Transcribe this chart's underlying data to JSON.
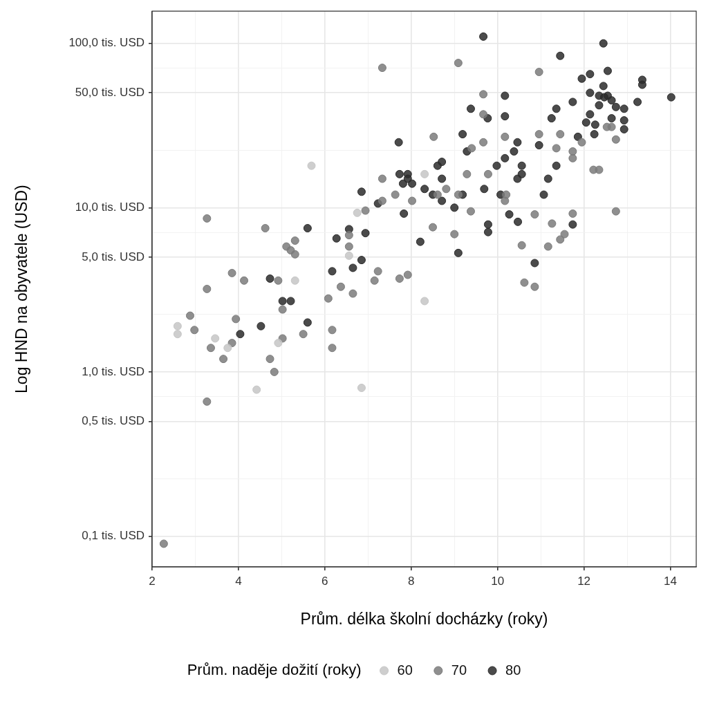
{
  "chart_data": {
    "type": "scatter",
    "xlabel": "Prům. délka školní docházky (roky)",
    "ylabel": "Log HND na obyvatele (USD)",
    "legend_title": "Prům. naděje dožití (roky)",
    "legend": "bottom",
    "marker": "circle",
    "log": "y",
    "grid": true,
    "xlim": [
      2,
      14.6
    ],
    "ylim": [
      0.065,
      157
    ],
    "xticks": [
      2,
      {
        "value": 3,
        "label": null
      },
      4,
      {
        "value": 5,
        "label": null
      },
      6,
      {
        "value": 7,
        "label": null
      },
      8,
      {
        "value": 9,
        "label": null
      },
      10,
      {
        "value": 11,
        "label": null
      },
      12,
      {
        "value": 13,
        "label": null
      },
      14
    ],
    "yticks": [
      {
        "value": 0.1,
        "label": "0,1 tis. USD"
      },
      {
        "value": 0.2236,
        "label": null
      },
      {
        "value": 0.5,
        "label": "0,5 tis. USD"
      },
      {
        "value": 0.7071,
        "label": null
      },
      {
        "value": 1,
        "label": "1,0 tis. USD"
      },
      {
        "value": 2.236,
        "label": null
      },
      {
        "value": 5,
        "label": "5,0 tis. USD"
      },
      {
        "value": 7.071,
        "label": null
      },
      {
        "value": 10,
        "label": "10,0 tis. USD"
      },
      {
        "value": 22.36,
        "label": null
      },
      {
        "value": 50,
        "label": "50,0 tis. USD"
      },
      {
        "value": 70.71,
        "label": null
      },
      {
        "value": 100,
        "label": "100,0 tis. USD"
      }
    ],
    "series": [
      {
        "name": "60",
        "color": "#c6c6c6",
        "x": [
          2.59,
          2.59,
          3.46,
          3.75,
          4.42,
          4.92,
          5.31,
          5.69,
          6.56,
          6.75,
          6.85,
          8.31,
          8.31
        ],
        "values": [
          1.9,
          1.7,
          1.6,
          1.4,
          0.78,
          1.5,
          3.6,
          18,
          5.1,
          9.3,
          0.8,
          2.7,
          16
        ]
      },
      {
        "name": "70",
        "color": "#7b7b7b",
        "x": [
          2.88,
          2.98,
          3.27,
          3.27,
          3.36,
          3.65,
          3.85,
          3.85,
          3.94,
          4.13,
          4.62,
          4.92,
          4.73,
          4.83,
          5.02,
          5.02,
          5.11,
          5.21,
          5.31,
          5.31,
          5.5,
          6.08,
          6.17,
          6.17,
          6.37,
          6.65,
          6.56,
          6.56,
          6.94,
          3.27,
          2.27,
          7.23,
          7.15,
          7.73,
          7.92,
          7.33,
          7.33,
          7.63,
          8.02,
          8.61,
          8.81,
          9.09,
          9.29,
          9.38,
          9.0,
          8.5,
          9.78,
          10.2,
          10.17,
          10.56,
          10.62,
          10.86,
          10.86,
          11.26,
          11.17,
          11.55,
          11.45,
          11.74,
          12.74,
          9.09,
          10.96,
          9.67,
          9.67,
          9.67,
          10.17,
          8.52,
          9.4,
          11.36,
          11.45,
          10.96,
          11.74,
          11.74,
          11.95,
          12.22,
          12.35,
          12.64,
          12.53,
          12.74,
          7.33
        ],
        "values": [
          2.2,
          1.8,
          8.6,
          3.2,
          1.4,
          1.2,
          1.5,
          4.0,
          2.1,
          3.6,
          7.5,
          3.6,
          1.2,
          1.0,
          1.6,
          2.4,
          5.8,
          5.5,
          6.3,
          5.2,
          1.7,
          2.8,
          1.8,
          1.4,
          3.3,
          3.0,
          6.8,
          5.8,
          9.6,
          0.66,
          0.09,
          4.1,
          3.6,
          3.7,
          3.9,
          15,
          11,
          12,
          11,
          12,
          13,
          12,
          16,
          9.5,
          6.9,
          7.6,
          16,
          12,
          11,
          5.9,
          3.5,
          3.3,
          9.1,
          8.0,
          5.8,
          6.9,
          6.4,
          9.2,
          9.5,
          76,
          67,
          49,
          37,
          25,
          27,
          27,
          23,
          23,
          28,
          28,
          22,
          20,
          25,
          17,
          17,
          31,
          31,
          26,
          71
        ]
      },
      {
        "name": "80",
        "color": "#2b2b2b",
        "x": [
          4.04,
          4.52,
          4.73,
          5.02,
          5.21,
          5.6,
          5.6,
          6.17,
          6.27,
          6.56,
          6.65,
          6.85,
          6.94,
          6.85,
          7.23,
          7.83,
          7.73,
          7.92,
          7.81,
          7.92,
          8.02,
          8.31,
          8.5,
          8.71,
          8.61,
          8.71,
          8.71,
          9.19,
          9.0,
          9.69,
          9.98,
          10.17,
          10.07,
          10.27,
          10.47,
          10.56,
          10.56,
          10.46,
          9.78,
          9.78,
          9.09,
          8.21,
          11.07,
          11.17,
          11.36,
          11.74,
          10.86,
          9.67,
          12.45,
          11.45,
          12.55,
          12.14,
          11.95,
          13.35,
          13.35,
          12.45,
          12.14,
          12.35,
          12.55,
          12.47,
          12.64,
          12.74,
          12.93,
          13.24,
          14.02,
          12.35,
          11.74,
          11.36,
          11.25,
          12.14,
          12.05,
          12.26,
          12.64,
          12.93,
          12.93,
          12.24,
          11.86,
          10.96,
          10.17,
          9.38,
          9.77,
          10.17,
          9.19,
          10.46,
          10.38,
          9.29,
          7.71
        ],
        "values": [
          1.7,
          1.9,
          3.7,
          2.7,
          2.7,
          7.5,
          2.0,
          4.1,
          6.5,
          7.4,
          4.3,
          4.8,
          7.0,
          12.5,
          10.6,
          9.2,
          16,
          16,
          14,
          15,
          14,
          13,
          12,
          11,
          18,
          19,
          15,
          12,
          10,
          13,
          18,
          20,
          12,
          9.1,
          8.2,
          18,
          16,
          15,
          7.9,
          7.1,
          5.3,
          6.2,
          12,
          15,
          18,
          7.9,
          4.6,
          110,
          100,
          84,
          68,
          65,
          61,
          60,
          56,
          55,
          50,
          48,
          48,
          47,
          45,
          41,
          40,
          44,
          47,
          42,
          44,
          40,
          35,
          37,
          33,
          32,
          35,
          34,
          30,
          28,
          27,
          24,
          48,
          40,
          35,
          36,
          28,
          25,
          22,
          22,
          25
        ]
      }
    ]
  }
}
